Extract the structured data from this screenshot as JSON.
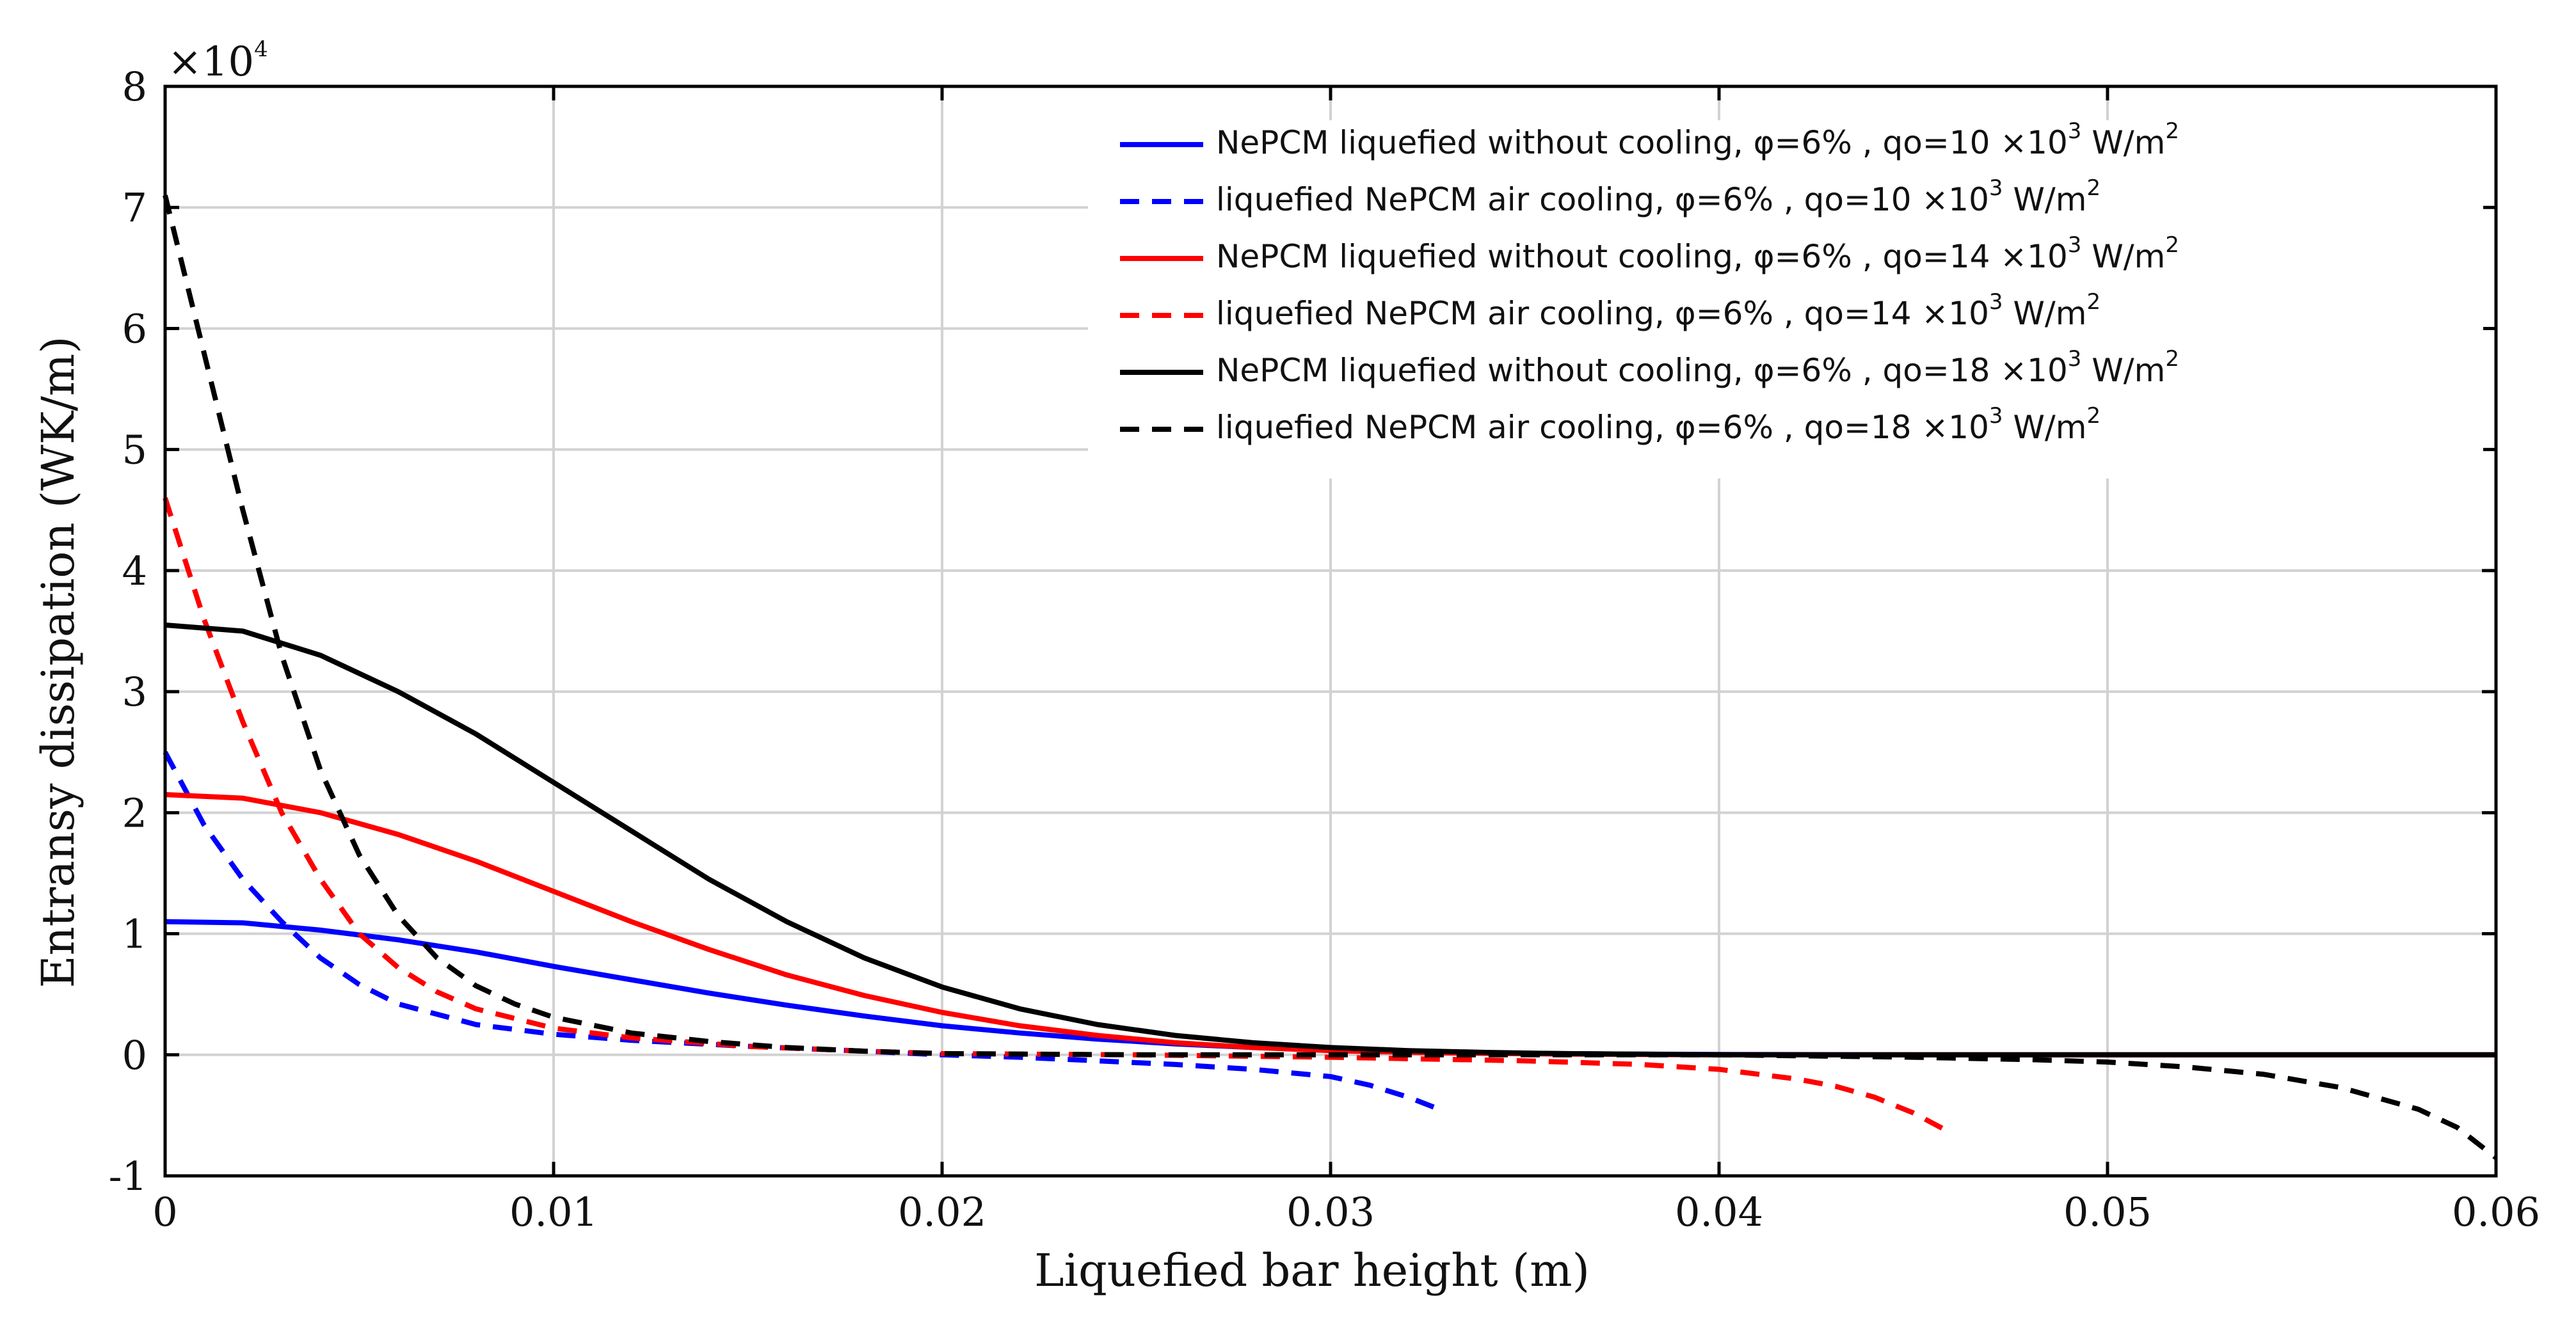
{
  "chart_data": {
    "type": "line",
    "title": "",
    "xlabel": "Liquefied bar height (m)",
    "ylabel": "Entransy dissipation (WK/m)",
    "y_multiplier": "×10",
    "y_multiplier_exponent": "4",
    "xlim": [
      0,
      0.06
    ],
    "ylim": [
      -1,
      8
    ],
    "x_ticks": [
      0,
      0.01,
      0.02,
      0.03,
      0.04,
      0.05,
      0.06
    ],
    "x_tick_labels": [
      "0",
      "0.01",
      "0.02",
      "0.03",
      "0.04",
      "0.05",
      "0.06"
    ],
    "y_ticks": [
      -1,
      0,
      1,
      2,
      3,
      4,
      5,
      6,
      7,
      8
    ],
    "y_tick_labels": [
      "-1",
      "0",
      "1",
      "2",
      "3",
      "4",
      "5",
      "6",
      "7",
      "8"
    ],
    "grid": true,
    "legend_position": "top-right",
    "series": [
      {
        "name": "NePCM liquefied without cooling, φ=6% , qo=10 ×10^3 W/m^2",
        "legend_main": "NePCM liquefied without cooling, φ=6% , qo=10 ×10",
        "legend_exp": "3",
        "legend_unit": " W/m",
        "legend_unit_exp": "2",
        "color": "#0000ff",
        "dash": "solid",
        "x": [
          0,
          0.002,
          0.004,
          0.006,
          0.008,
          0.01,
          0.012,
          0.014,
          0.016,
          0.018,
          0.02,
          0.022,
          0.024,
          0.026,
          0.028,
          0.03,
          0.032,
          0.034,
          0.036,
          0.038,
          0.04,
          0.045,
          0.05,
          0.055,
          0.06
        ],
        "y": [
          1.1,
          1.09,
          1.03,
          0.95,
          0.85,
          0.73,
          0.62,
          0.51,
          0.41,
          0.32,
          0.24,
          0.18,
          0.13,
          0.09,
          0.06,
          0.04,
          0.025,
          0.015,
          0.01,
          0.005,
          0.003,
          0.0,
          0.0,
          0.0,
          0.0
        ]
      },
      {
        "name": "liquefied NePCM air cooling, φ=6% , qo=10 ×10^3 W/m^2",
        "legend_main": "liquefied NePCM air cooling, φ=6% , qo=10 ×10",
        "legend_exp": "3",
        "legend_unit": " W/m",
        "legend_unit_exp": "2",
        "color": "#0000ff",
        "dash": "dashed",
        "x": [
          0,
          0.001,
          0.002,
          0.003,
          0.004,
          0.005,
          0.006,
          0.008,
          0.01,
          0.012,
          0.015,
          0.018,
          0.02,
          0.022,
          0.024,
          0.026,
          0.028,
          0.03,
          0.031,
          0.032,
          0.0328
        ],
        "y": [
          2.5,
          1.9,
          1.45,
          1.1,
          0.8,
          0.58,
          0.42,
          0.25,
          0.17,
          0.12,
          0.07,
          0.03,
          0.0,
          -0.02,
          -0.05,
          -0.08,
          -0.12,
          -0.18,
          -0.25,
          -0.35,
          -0.45
        ]
      },
      {
        "name": "NePCM liquefied without cooling, φ=6% , qo=14 ×10^3 W/m^2",
        "legend_main": "NePCM liquefied without cooling, φ=6% , qo=14 ×10",
        "legend_exp": "3",
        "legend_unit": " W/m",
        "legend_unit_exp": "2",
        "color": "#ff0000",
        "dash": "solid",
        "x": [
          0,
          0.002,
          0.004,
          0.006,
          0.008,
          0.01,
          0.012,
          0.014,
          0.016,
          0.018,
          0.02,
          0.022,
          0.024,
          0.026,
          0.028,
          0.03,
          0.032,
          0.034,
          0.036,
          0.038,
          0.04,
          0.045,
          0.05,
          0.055,
          0.06
        ],
        "y": [
          2.15,
          2.12,
          2.0,
          1.82,
          1.6,
          1.35,
          1.1,
          0.87,
          0.66,
          0.49,
          0.35,
          0.24,
          0.16,
          0.1,
          0.06,
          0.035,
          0.02,
          0.012,
          0.006,
          0.003,
          0.0,
          0.0,
          0.0,
          0.0,
          0.0
        ]
      },
      {
        "name": "liquefied NePCM air cooling, φ=6% , qo=14 ×10^3 W/m^2",
        "legend_main": "liquefied NePCM air cooling, φ=6% , qo=14 ×10",
        "legend_exp": "3",
        "legend_unit": " W/m",
        "legend_unit_exp": "2",
        "color": "#ff0000",
        "dash": "dashed",
        "x": [
          0,
          0.001,
          0.002,
          0.003,
          0.004,
          0.005,
          0.006,
          0.007,
          0.008,
          0.01,
          0.012,
          0.015,
          0.018,
          0.02,
          0.025,
          0.03,
          0.035,
          0.038,
          0.04,
          0.042,
          0.043,
          0.044,
          0.045,
          0.046
        ],
        "y": [
          4.6,
          3.6,
          2.75,
          2.0,
          1.45,
          1.0,
          0.72,
          0.52,
          0.38,
          0.22,
          0.14,
          0.07,
          0.03,
          0.01,
          0.0,
          -0.02,
          -0.05,
          -0.08,
          -0.12,
          -0.2,
          -0.26,
          -0.35,
          -0.48,
          -0.65
        ]
      },
      {
        "name": "NePCM liquefied without cooling, φ=6% , qo=18 ×10^3 W/m^2",
        "legend_main": "NePCM liquefied without cooling, φ=6% , qo=18 ×10",
        "legend_exp": "3",
        "legend_unit": "  W/m",
        "legend_unit_exp": "2",
        "color": "#000000",
        "dash": "solid",
        "x": [
          0,
          0.002,
          0.004,
          0.006,
          0.008,
          0.01,
          0.012,
          0.014,
          0.016,
          0.018,
          0.02,
          0.022,
          0.024,
          0.026,
          0.028,
          0.03,
          0.032,
          0.034,
          0.036,
          0.038,
          0.04,
          0.045,
          0.05,
          0.055,
          0.06
        ],
        "y": [
          3.55,
          3.5,
          3.3,
          3.0,
          2.65,
          2.25,
          1.85,
          1.45,
          1.1,
          0.8,
          0.56,
          0.38,
          0.25,
          0.16,
          0.1,
          0.06,
          0.035,
          0.02,
          0.01,
          0.005,
          0.0,
          0.0,
          0.0,
          0.0,
          0.0
        ]
      },
      {
        "name": "liquefied NePCM air cooling, φ=6% , qo=18 ×10^3 W/m^2",
        "legend_main": "liquefied NePCM air cooling, φ=6% , qo=18 ×10",
        "legend_exp": "3",
        "legend_unit": " W/m",
        "legend_unit_exp": "2",
        "color": "#000000",
        "dash": "dashed",
        "x": [
          0,
          0.001,
          0.002,
          0.003,
          0.004,
          0.005,
          0.006,
          0.007,
          0.008,
          0.009,
          0.01,
          0.012,
          0.014,
          0.016,
          0.018,
          0.02,
          0.025,
          0.03,
          0.035,
          0.04,
          0.045,
          0.048,
          0.05,
          0.052,
          0.054,
          0.056,
          0.058,
          0.059,
          0.06
        ],
        "y": [
          7.1,
          5.8,
          4.5,
          3.3,
          2.35,
          1.65,
          1.15,
          0.8,
          0.57,
          0.42,
          0.31,
          0.18,
          0.11,
          0.06,
          0.03,
          0.01,
          0.0,
          0.0,
          0.0,
          0.0,
          -0.02,
          -0.04,
          -0.06,
          -0.1,
          -0.16,
          -0.27,
          -0.45,
          -0.6,
          -0.85
        ]
      }
    ]
  }
}
